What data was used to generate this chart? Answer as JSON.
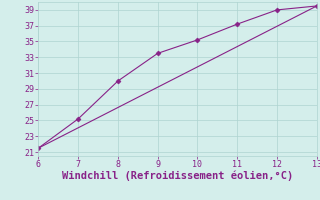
{
  "line1_x": [
    6,
    7,
    8,
    9,
    10,
    11,
    12,
    13
  ],
  "line1_y": [
    21.5,
    25.2,
    30.0,
    33.5,
    35.2,
    37.2,
    39.0,
    39.5
  ],
  "line2_x": [
    6,
    13
  ],
  "line2_y": [
    21.5,
    39.5
  ],
  "line_color": "#882288",
  "marker": "D",
  "markersize": 2.5,
  "xlabel": "Windchill (Refroidissement éolien,°C)",
  "xlim": [
    6,
    13
  ],
  "ylim": [
    20.5,
    40
  ],
  "yticks": [
    21,
    23,
    25,
    27,
    29,
    31,
    33,
    35,
    37,
    39
  ],
  "xticks": [
    6,
    7,
    8,
    9,
    10,
    11,
    12,
    13
  ],
  "bg_color": "#d4eeeb",
  "grid_color": "#aed4d0",
  "xlabel_color": "#882288",
  "xlabel_fontsize": 7.5,
  "tick_fontsize": 6.0
}
